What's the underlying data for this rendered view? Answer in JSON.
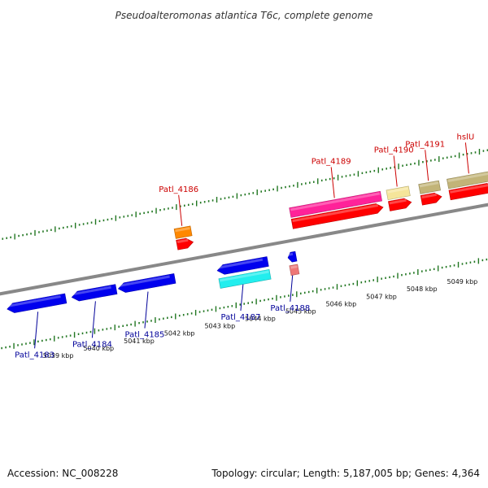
{
  "title": "Pseudoalteromonas atlantica T6c, complete genome",
  "footer": {
    "accession": "Accession: NC_008228",
    "summary": "Topology: circular; Length: 5,187,005 bp; Genes: 4,364"
  },
  "colors": {
    "forward_label": "#cc0000",
    "reverse_label": "#000099",
    "backbone": "#888888",
    "ticks": "#227722"
  },
  "scale": {
    "labels": [
      "5039 kbp",
      "5040 kbp",
      "5041 kbp",
      "5042 kbp",
      "5043 kbp",
      "5044 kbp",
      "5045 kbp",
      "5046 kbp",
      "5047 kbp",
      "5048 kbp",
      "5049 kbp"
    ]
  },
  "genes": {
    "forward": [
      {
        "name": "Patl_4186",
        "start": 5042.35,
        "end": 5042.75,
        "row": 1,
        "color": "#ff0000"
      },
      {
        "name": "",
        "start": 5042.35,
        "end": 5042.75,
        "row": 2,
        "color": "#ff8800"
      },
      {
        "name": "Patl_4189",
        "start": 5045.2,
        "end": 5047.45,
        "row": 1,
        "color": "#ff0000"
      },
      {
        "name": "",
        "start": 5045.2,
        "end": 5047.45,
        "row": 2,
        "color": "#ff2299"
      },
      {
        "name": "Patl_4190",
        "start": 5047.6,
        "end": 5048.15,
        "row": 1,
        "color": "#ff0000"
      },
      {
        "name": "",
        "start": 5047.6,
        "end": 5048.15,
        "row": 2,
        "color": "#f5e59a"
      },
      {
        "name": "Patl_4191",
        "start": 5048.4,
        "end": 5048.9,
        "row": 1,
        "color": "#ff0000"
      },
      {
        "name": "",
        "start": 5048.4,
        "end": 5048.9,
        "row": 2,
        "color": "#c2b478"
      },
      {
        "name": "hslU",
        "start": 5049.1,
        "end": 5050.2,
        "row": 1,
        "color": "#ff0000"
      },
      {
        "name": "",
        "start": 5049.1,
        "end": 5050.2,
        "row": 2,
        "color": "#c2b478"
      }
    ],
    "reverse": [
      {
        "name": "Patl_4183",
        "start": 5038.0,
        "end": 5039.45,
        "row": 1,
        "color": "#0000ee"
      },
      {
        "name": "Patl_4184",
        "start": 5039.6,
        "end": 5040.7,
        "row": 1,
        "color": "#0000ee"
      },
      {
        "name": "Patl_4185",
        "start": 5040.75,
        "end": 5042.15,
        "row": 1,
        "color": "#0000ee"
      },
      {
        "name": "Patl_4187",
        "start": 5043.2,
        "end": 5044.45,
        "row": 1,
        "color": "#0000ee"
      },
      {
        "name": "",
        "start": 5043.2,
        "end": 5044.45,
        "row": 2,
        "color": "#22eeee"
      },
      {
        "name": "Patl_4188",
        "start": 5044.95,
        "end": 5045.15,
        "row": 1,
        "color": "#0000ee"
      },
      {
        "name": "",
        "start": 5044.95,
        "end": 5045.15,
        "row": 2,
        "color": "#ee7777"
      }
    ]
  }
}
